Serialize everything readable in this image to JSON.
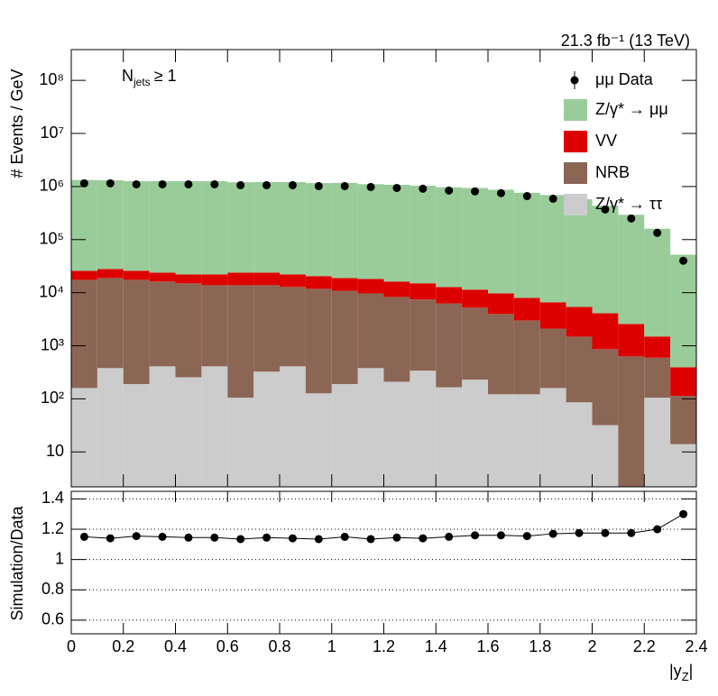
{
  "chart_data": [
    {
      "type": "histogram",
      "log": true,
      "lumi": "21.3 fb⁻¹ (13 TeV)",
      "annotation_parts": [
        "N",
        "jets",
        "≥ 1"
      ],
      "ylabel": "# Events / GeV",
      "bins": [
        0,
        0.1,
        0.2,
        0.3,
        0.4,
        0.5,
        0.6,
        0.7,
        0.8,
        0.9,
        1,
        1.1,
        1.2,
        1.3,
        1.4,
        1.5,
        1.6,
        1.7,
        1.8,
        1.9,
        2,
        2.1,
        2.2,
        2.3,
        2.4
      ],
      "xlim": [
        0,
        2.4
      ],
      "xticks": [
        0,
        0.2,
        0.4,
        0.6,
        0.8,
        1,
        1.2,
        1.4,
        1.6,
        1.8,
        2,
        2.2,
        2.4
      ],
      "ylim": [
        2.2,
        380000000
      ],
      "yticks": [
        {
          "value": 10,
          "label": "10"
        },
        {
          "value": 100,
          "label": "10²"
        },
        {
          "value": 1000,
          "label": "10³"
        },
        {
          "value": 10000,
          "label": "10⁴"
        },
        {
          "value": 100000,
          "label": "10⁵"
        },
        {
          "value": 1000000,
          "label": "10⁶"
        },
        {
          "value": 10000000,
          "label": "10⁷"
        },
        {
          "value": 100000000,
          "label": "10⁸"
        }
      ],
      "legend": "upper right",
      "series": [
        {
          "name": "μμ Data",
          "color": "#000000",
          "style": "markers",
          "values": [
            1150000,
            1150000,
            1100000,
            1100000,
            1100000,
            1100000,
            1060000,
            1060000,
            1060000,
            1020000,
            1020000,
            980000,
            940000,
            910000,
            840000,
            810000,
            750000,
            660000,
            590000,
            490000,
            370000,
            250000,
            134000,
            40000
          ]
        },
        {
          "name": "Z/γ* → μμ",
          "color": "#99cc99",
          "style": "stacked",
          "values": [
            1300000,
            1280000,
            1240000,
            1240000,
            1240000,
            1240000,
            1180000,
            1190000,
            1190000,
            1140000,
            1150000,
            1090000,
            1060000,
            1020000,
            953000,
            928000,
            860000,
            754000,
            684000,
            570000,
            431000,
            291000,
            159000,
            51600
          ]
        },
        {
          "name": "VV",
          "color": "#dd0000",
          "style": "stacked",
          "values": [
            8400,
            9100,
            8400,
            7700,
            7100,
            8300,
            10100,
            10100,
            9300,
            8700,
            8000,
            8500,
            7900,
            7600,
            6500,
            6200,
            5740,
            5000,
            4500,
            3910,
            3240,
            1950,
            900,
            278
          ]
        },
        {
          "name": "NRB",
          "color": "#8c6655",
          "style": "stacked",
          "values": [
            17300,
            18500,
            17300,
            15800,
            14700,
            13400,
            13700,
            13500,
            12400,
            11700,
            10700,
            9300,
            8100,
            7100,
            6100,
            5000,
            3840,
            2880,
            1940,
            1400,
            830,
            630,
            490,
            100
          ]
        },
        {
          "name": "Z/γ* → ττ",
          "color": "#cccccc",
          "style": "stacked",
          "values": [
            160,
            380,
            190,
            410,
            255,
            410,
            105,
            325,
            410,
            127,
            190,
            380,
            210,
            340,
            165,
            230,
            122,
            122,
            160,
            86,
            32,
            0,
            105,
            14
          ]
        }
      ]
    },
    {
      "type": "line",
      "ylabel": "Simulation/Data",
      "xlabel_parts": [
        "|y",
        "Z",
        "|"
      ],
      "x": [
        0.05,
        0.15,
        0.25,
        0.35,
        0.45,
        0.55,
        0.65,
        0.75,
        0.85,
        0.95,
        1.05,
        1.15,
        1.25,
        1.35,
        1.45,
        1.55,
        1.65,
        1.75,
        1.85,
        1.95,
        2.05,
        2.15,
        2.25,
        2.35
      ],
      "values": [
        1.15,
        1.14,
        1.155,
        1.15,
        1.145,
        1.145,
        1.135,
        1.145,
        1.14,
        1.135,
        1.15,
        1.135,
        1.145,
        1.14,
        1.15,
        1.16,
        1.16,
        1.155,
        1.17,
        1.175,
        1.175,
        1.175,
        1.2,
        1.3
      ],
      "color": "#000000",
      "xlim": [
        0,
        2.4
      ],
      "xticks": [
        0,
        0.2,
        0.4,
        0.6,
        0.8,
        1,
        1.2,
        1.4,
        1.6,
        1.8,
        2,
        2.2,
        2.4
      ],
      "ylim": [
        0.51,
        1.45
      ],
      "yticks": [
        0.6,
        0.8,
        1,
        1.2,
        1.4
      ],
      "grid": true
    }
  ]
}
